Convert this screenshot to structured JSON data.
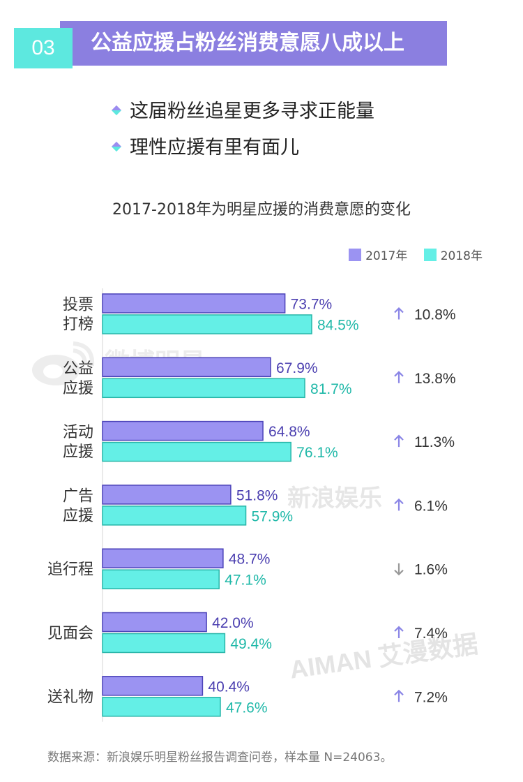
{
  "header": {
    "number": "03",
    "title": "公益应援占粉丝消费意愿八成以上"
  },
  "bullets": [
    "这届粉丝追星更多寻求正能量",
    "理性应援有里有面儿"
  ],
  "watermarks": {
    "weibo": "微博明星",
    "sina": "新浪娱乐",
    "aiman": "AIMAN 艾漫数据"
  },
  "source": "数据来源：新浪娱乐明星粉丝报告调查问卷，样本量 N=24063。",
  "colors": {
    "header_purple": "#8b7fe0",
    "header_cyan": "#5de8df",
    "series_2017": "#9b93f2",
    "series_2018": "#64efe6",
    "label_2017": "#4b3fb0",
    "label_2018": "#1fb8a8",
    "arrow": "#8a85e6",
    "arrow_down": "#999999"
  },
  "chart_data": {
    "type": "bar",
    "orientation": "horizontal",
    "title": "2017-2018年为明星应援的消费意愿的变化",
    "categories": [
      [
        "投票",
        "打榜"
      ],
      [
        "公益",
        "应援"
      ],
      [
        "活动",
        "应援"
      ],
      [
        "广告",
        "应援"
      ],
      [
        "追行程"
      ],
      [
        "见面会"
      ],
      [
        "送礼物"
      ]
    ],
    "series": [
      {
        "name": "2017年",
        "values": [
          73.7,
          67.9,
          64.8,
          51.8,
          48.7,
          42.0,
          40.4
        ],
        "labels": [
          "73.7%",
          "67.9%",
          "64.8%",
          "51.8%",
          "48.7%",
          "42.0%",
          "40.4%"
        ]
      },
      {
        "name": "2018年",
        "values": [
          84.5,
          81.7,
          76.1,
          57.9,
          47.1,
          49.4,
          47.6
        ],
        "labels": [
          "84.5%",
          "81.7%",
          "76.1%",
          "57.9%",
          "47.1%",
          "49.4%",
          "47.6%"
        ]
      }
    ],
    "changes": [
      {
        "direction": "up",
        "label": "10.8%"
      },
      {
        "direction": "up",
        "label": "13.8%"
      },
      {
        "direction": "up",
        "label": "11.3%"
      },
      {
        "direction": "up",
        "label": "6.1%"
      },
      {
        "direction": "down",
        "label": "1.6%"
      },
      {
        "direction": "up",
        "label": "7.4%"
      },
      {
        "direction": "up",
        "label": "7.2%"
      }
    ],
    "xlim": [
      0,
      100
    ],
    "grid": false,
    "legend_position": "top-right"
  }
}
